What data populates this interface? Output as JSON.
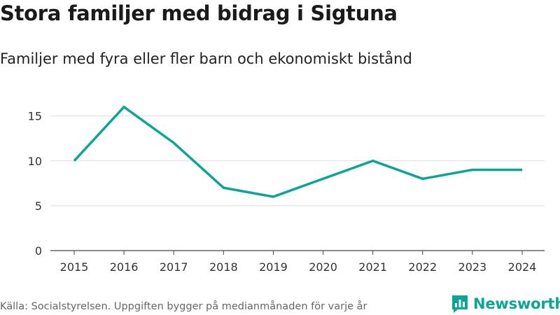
{
  "title": "Stora familjer med bidrag i Sigtuna",
  "subtitle": "Familjer med fyra eller fler barn och ekonomiskt bistånd",
  "source": "Källa: Socialstyrelsen. Uppgiften bygger på medianmånaden för varje år",
  "brand": {
    "name": "Newsworthy",
    "icon": "newsworthy-logo-icon",
    "color": "#0aa595"
  },
  "chart_data": {
    "type": "line",
    "title": "Stora familjer med bidrag i Sigtuna",
    "subtitle": "Familjer med fyra eller fler barn och ekonomiskt bistånd",
    "x": [
      "2015",
      "2016",
      "2017",
      "2018",
      "2019",
      "2020",
      "2021",
      "2022",
      "2023",
      "2024"
    ],
    "series": [
      {
        "name": "Familjer",
        "values": [
          10,
          16,
          12,
          7,
          6,
          8,
          10,
          8,
          9,
          9
        ],
        "color": "#0aa595"
      }
    ],
    "yticks": [
      "0",
      "5",
      "10",
      "15"
    ],
    "ylim": [
      0,
      17
    ],
    "xlabel": "",
    "ylabel": "",
    "grid": true
  }
}
